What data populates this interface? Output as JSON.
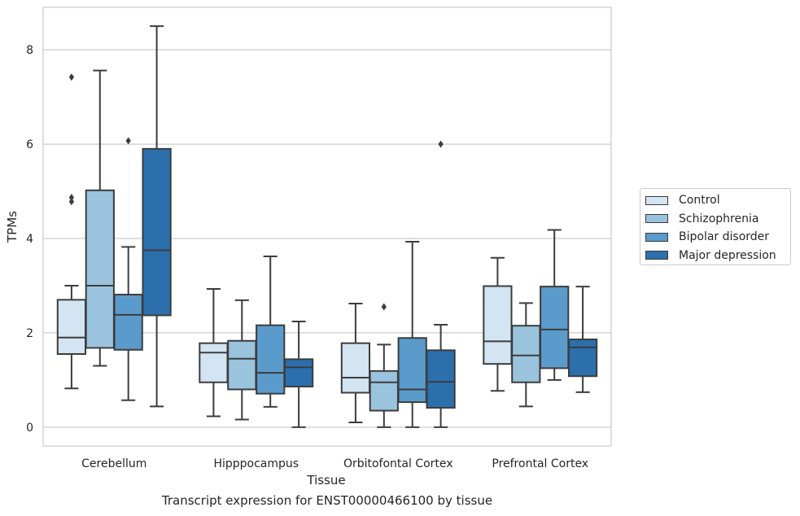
{
  "caption": "Transcript expression for ENST00000466100 by tissue",
  "chart_data": {
    "type": "box",
    "title": "",
    "xlabel": "Tissue",
    "ylabel": "TPMs",
    "ylim": [
      -0.4,
      8.9
    ],
    "yticks": [
      0,
      2,
      4,
      6,
      8
    ],
    "grid": "horizontal",
    "legend_position": "right",
    "categories": [
      "Cerebellum",
      "Hipppocampus",
      "Orbitofontal Cortex",
      "Prefrontal Cortex"
    ],
    "series": [
      {
        "name": "Control",
        "color": "#d3e4f3",
        "boxes": [
          {
            "min": 0.82,
            "q1": 1.55,
            "median": 1.9,
            "q3": 2.7,
            "max": 3.0,
            "outliers": [
              4.78,
              4.87,
              7.42
            ]
          },
          {
            "min": 0.23,
            "q1": 0.95,
            "median": 1.58,
            "q3": 1.78,
            "max": 2.93,
            "outliers": []
          },
          {
            "min": 0.1,
            "q1": 0.73,
            "median": 1.05,
            "q3": 1.78,
            "max": 2.62,
            "outliers": []
          },
          {
            "min": 0.77,
            "q1": 1.34,
            "median": 1.82,
            "q3": 2.99,
            "max": 3.59,
            "outliers": []
          }
        ]
      },
      {
        "name": "Schizophrenia",
        "color": "#9ac3dd",
        "boxes": [
          {
            "min": 1.3,
            "q1": 1.68,
            "median": 3.0,
            "q3": 5.02,
            "max": 7.56,
            "outliers": []
          },
          {
            "min": 0.16,
            "q1": 0.8,
            "median": 1.45,
            "q3": 1.83,
            "max": 2.69,
            "outliers": []
          },
          {
            "min": 0.0,
            "q1": 0.35,
            "median": 0.95,
            "q3": 1.19,
            "max": 1.75,
            "outliers": [
              2.55
            ]
          },
          {
            "min": 0.44,
            "q1": 0.95,
            "median": 1.52,
            "q3": 2.15,
            "max": 2.63,
            "outliers": []
          }
        ]
      },
      {
        "name": "Bipolar disorder",
        "color": "#5b9bcb",
        "boxes": [
          {
            "min": 0.57,
            "q1": 1.64,
            "median": 2.38,
            "q3": 2.81,
            "max": 3.82,
            "outliers": [
              6.07
            ]
          },
          {
            "min": 0.43,
            "q1": 0.71,
            "median": 1.15,
            "q3": 2.16,
            "max": 3.62,
            "outliers": []
          },
          {
            "min": 0.0,
            "q1": 0.53,
            "median": 0.8,
            "q3": 1.89,
            "max": 3.93,
            "outliers": []
          },
          {
            "min": 1.0,
            "q1": 1.25,
            "median": 2.07,
            "q3": 2.98,
            "max": 4.18,
            "outliers": []
          }
        ]
      },
      {
        "name": "Major depression",
        "color": "#2b6fad",
        "boxes": [
          {
            "min": 0.44,
            "q1": 2.37,
            "median": 3.75,
            "q3": 5.9,
            "max": 8.5,
            "outliers": []
          },
          {
            "min": 0.0,
            "q1": 0.86,
            "median": 1.27,
            "q3": 1.44,
            "max": 2.24,
            "outliers": []
          },
          {
            "min": 0.0,
            "q1": 0.41,
            "median": 0.96,
            "q3": 1.63,
            "max": 2.17,
            "outliers": [
              6.0
            ]
          },
          {
            "min": 0.74,
            "q1": 1.08,
            "median": 1.69,
            "q3": 1.86,
            "max": 2.98,
            "outliers": []
          }
        ]
      }
    ]
  }
}
